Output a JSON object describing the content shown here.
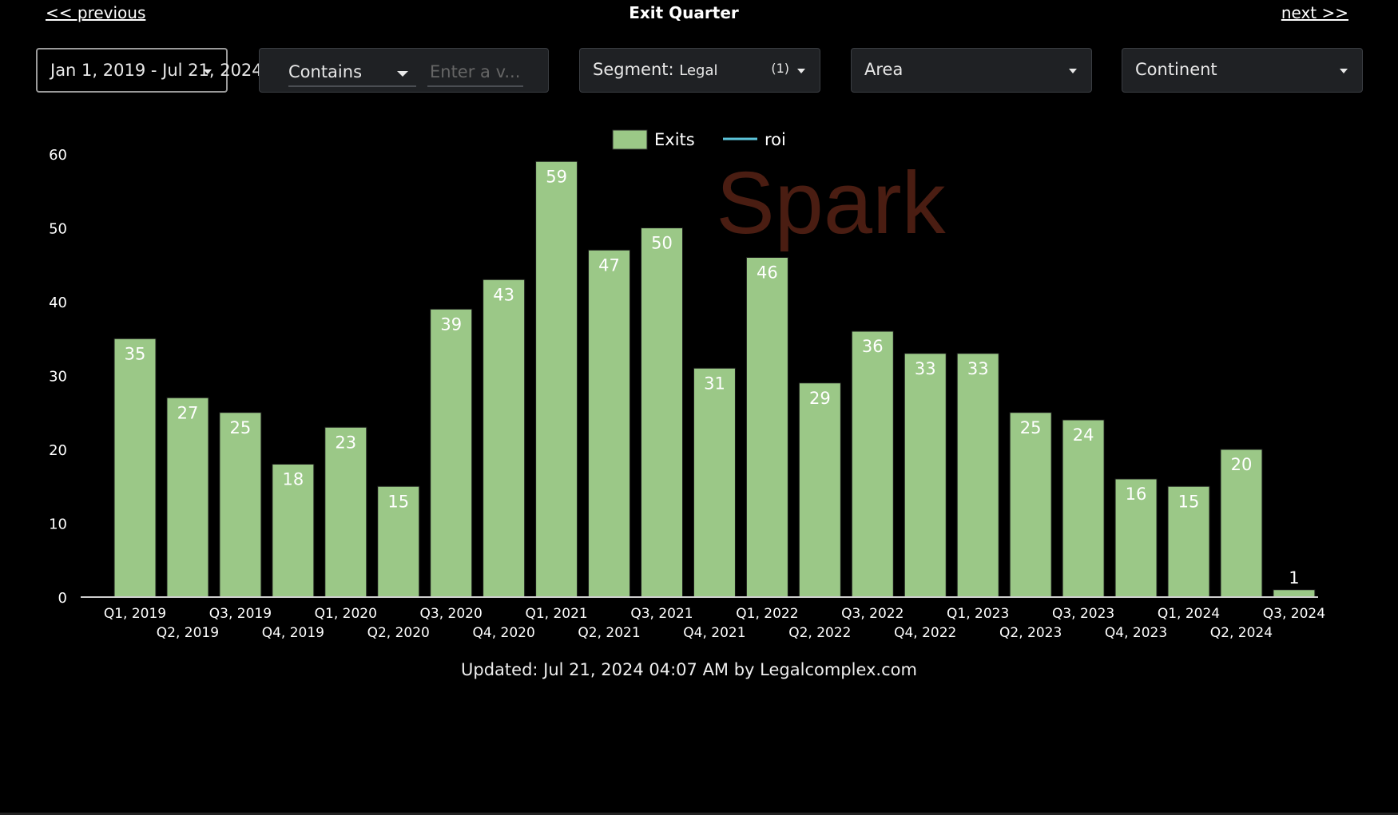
{
  "nav": {
    "previous_label": "<< previous",
    "title": "Exit Quarter",
    "next_label": "next >>"
  },
  "controls": {
    "date_range": "Jan 1, 2019 - Jul 21, 2024",
    "contains_operator": "Contains",
    "contains_placeholder": "Enter a v...",
    "segment_label": "Segment:",
    "segment_value": "Legal",
    "segment_count": "(1)",
    "area_label": "Area",
    "continent_label": "Continent"
  },
  "watermark": "Spark",
  "colors": {
    "bar": "#9bc887",
    "roi_line": "#5bc3d9",
    "background": "#000000"
  },
  "chart_data": {
    "type": "bar",
    "title": "Exit Quarter",
    "categories": [
      "Q1, 2019",
      "Q2, 2019",
      "Q3, 2019",
      "Q4, 2019",
      "Q1, 2020",
      "Q2, 2020",
      "Q3, 2020",
      "Q4, 2020",
      "Q1, 2021",
      "Q2, 2021",
      "Q3, 2021",
      "Q4, 2021",
      "Q1, 2022",
      "Q2, 2022",
      "Q3, 2022",
      "Q4, 2022",
      "Q1, 2023",
      "Q2, 2023",
      "Q3, 2023",
      "Q4, 2023",
      "Q1, 2024",
      "Q2, 2024",
      "Q3, 2024"
    ],
    "series": [
      {
        "name": "Exits",
        "type": "bar",
        "values": [
          35,
          27,
          25,
          18,
          23,
          15,
          39,
          43,
          59,
          47,
          50,
          31,
          46,
          29,
          36,
          33,
          33,
          25,
          24,
          16,
          15,
          20,
          1
        ]
      },
      {
        "name": "roi",
        "type": "line",
        "values": [
          0,
          0,
          0,
          0,
          0,
          0,
          0,
          0,
          0,
          0,
          0,
          0,
          0,
          0,
          0,
          0,
          0,
          0,
          0,
          0,
          0,
          0,
          0
        ]
      }
    ],
    "yticks": [
      0,
      10,
      20,
      30,
      40,
      50,
      60
    ],
    "ylim": [
      0,
      60
    ],
    "legend": "top-center",
    "grid": false
  },
  "footer": {
    "updated_text": "Updated: Jul 21, 2024 04:07 AM by Legalcomplex.com"
  }
}
